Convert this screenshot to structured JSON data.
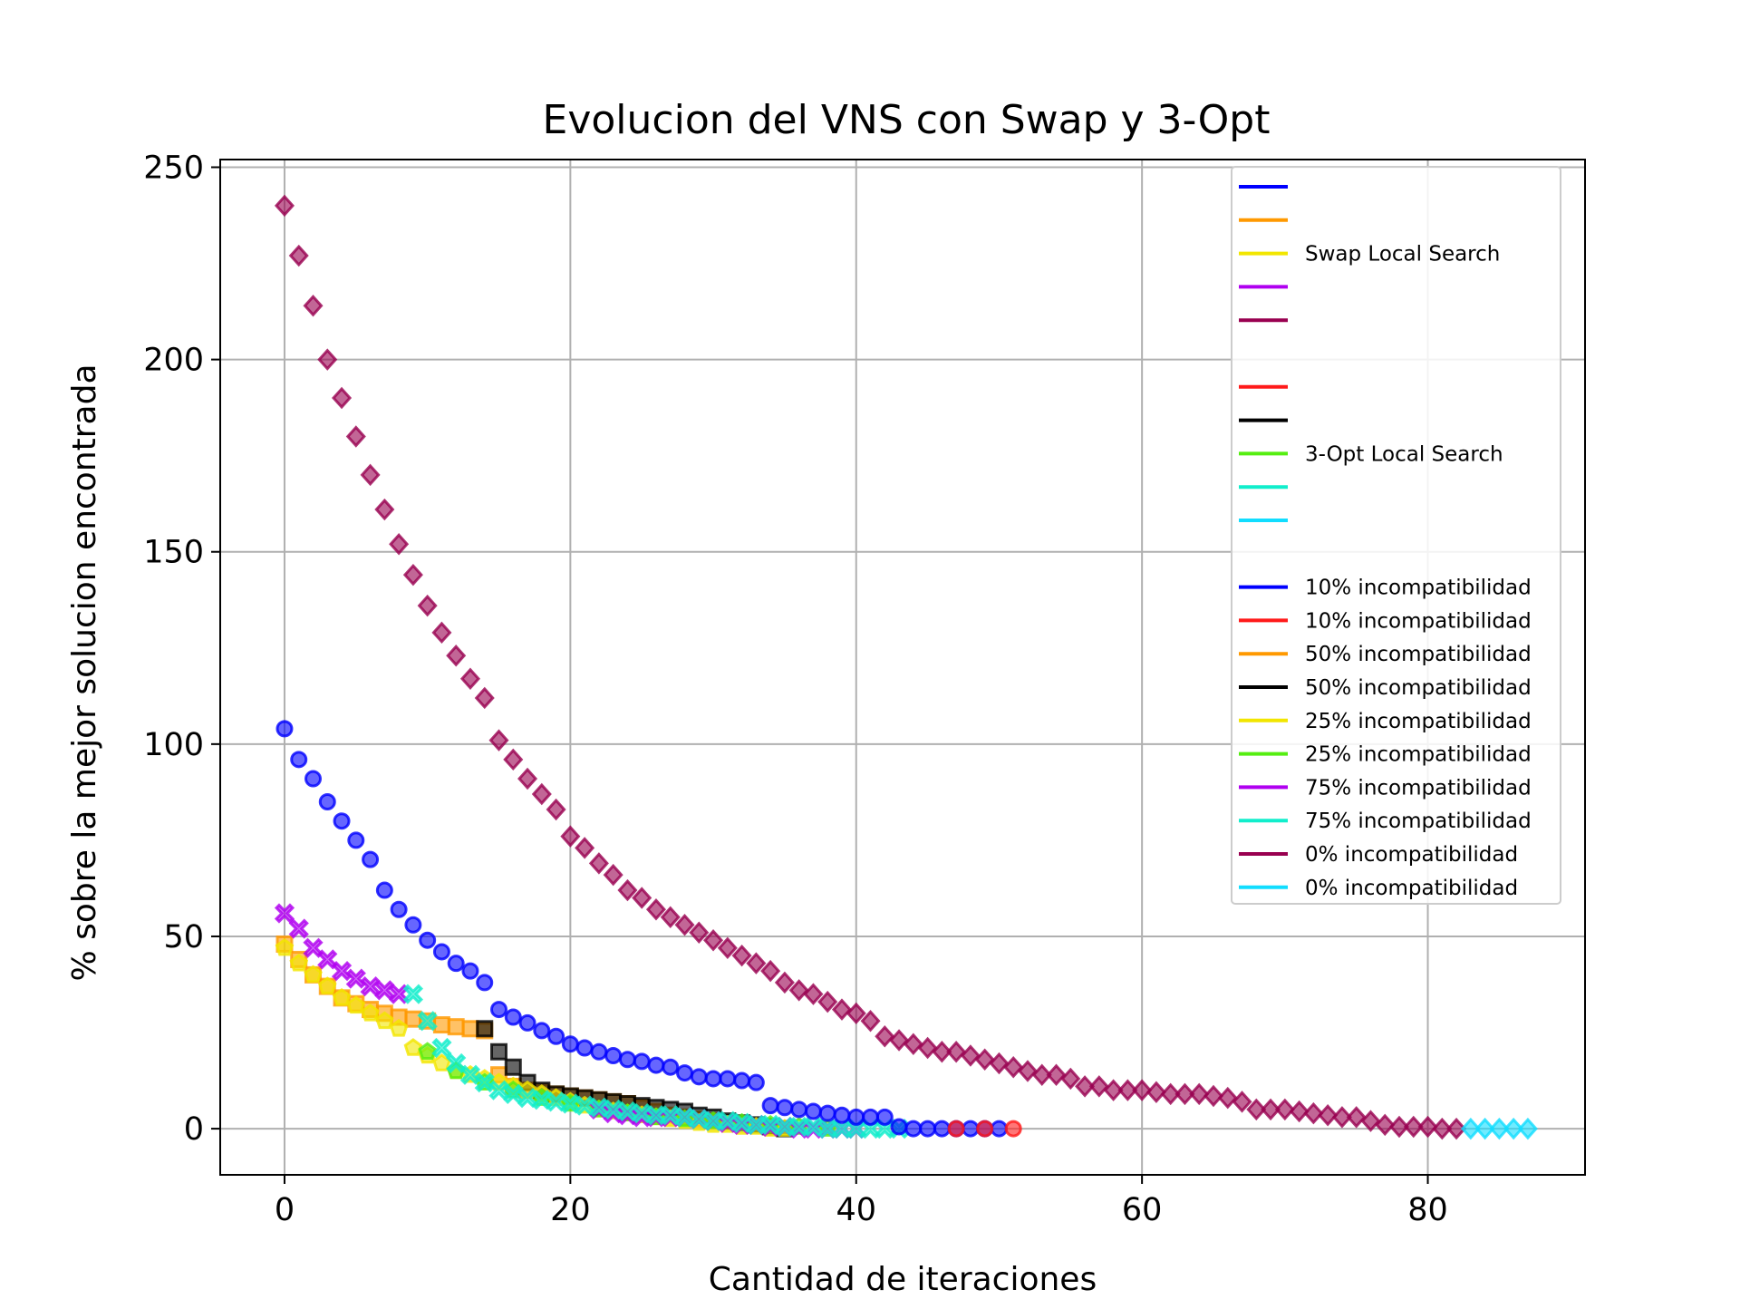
{
  "chart_data": {
    "type": "scatter",
    "title": "Evolucion del VNS con Swap y 3-Opt",
    "xlabel": "Cantidad de iteraciones",
    "ylabel": "% sobre la mejor solucion encontrada",
    "xlim": [
      -4.5,
      91
    ],
    "ylim": [
      -12,
      252
    ],
    "xticks": [
      0,
      20,
      40,
      60,
      80
    ],
    "yticks": [
      0,
      50,
      100,
      150,
      200,
      250
    ],
    "grid": true,
    "legend": {
      "placement": "top-right",
      "headers": [
        "",
        "",
        "Swap Local Search",
        "",
        "",
        "",
        "",
        "",
        "3-Opt Local Search",
        "",
        ""
      ],
      "header_colors": [
        "#0000ff",
        "#ff9900",
        "#f2e600",
        "#b000f0",
        "#990050",
        null,
        "#ff1a1a",
        "#000000",
        "#55ee11",
        "#11eecc",
        "#11ddff"
      ],
      "entries": [
        {
          "label": "10% incompatibilidad",
          "color": "#0000ff"
        },
        {
          "label": "10% incompatibilidad",
          "color": "#ff1a1a"
        },
        {
          "label": "50% incompatibilidad",
          "color": "#ff9900"
        },
        {
          "label": "50% incompatibilidad",
          "color": "#000000"
        },
        {
          "label": "25% incompatibilidad",
          "color": "#f2e600"
        },
        {
          "label": "25% incompatibilidad",
          "color": "#55ee11"
        },
        {
          "label": "75% incompatibilidad",
          "color": "#b000f0"
        },
        {
          "label": "75% incompatibilidad",
          "color": "#11eecc"
        },
        {
          "label": "0% incompatibilidad",
          "color": "#990050"
        },
        {
          "label": "0% incompatibilidad",
          "color": "#11ddff"
        }
      ]
    },
    "series": [
      {
        "marker": "square",
        "color": "#ff9900",
        "x": [
          0,
          1,
          2,
          3,
          4,
          5,
          6,
          7,
          8,
          9,
          10,
          11,
          12,
          13,
          14,
          15,
          16,
          17,
          18,
          19,
          20,
          21,
          22,
          23,
          24,
          25,
          26,
          27,
          28,
          29,
          30
        ],
        "y": [
          48,
          44,
          40,
          37,
          34,
          32.5,
          31,
          30,
          29,
          28.5,
          28,
          27,
          26.5,
          26,
          25.5,
          14,
          11,
          10,
          9.5,
          9,
          8.5,
          8,
          7.5,
          7,
          6.5,
          5.5,
          4.5,
          3.5,
          3,
          2.5,
          2
        ]
      },
      {
        "marker": "square",
        "color": "#000000",
        "x": [
          14,
          15,
          16,
          17,
          18,
          19,
          20,
          21,
          22,
          23,
          24,
          25,
          26,
          27,
          28,
          29,
          30,
          31,
          32,
          33,
          34,
          35
        ],
        "y": [
          26,
          20,
          16,
          12,
          10,
          9,
          8.5,
          8,
          7.5,
          7,
          6.5,
          6,
          5.5,
          5,
          4.5,
          3.5,
          3,
          2,
          1.5,
          1,
          0.5,
          0
        ]
      },
      {
        "marker": "pentagon",
        "color": "#f2e600",
        "x": [
          0,
          1,
          2,
          3,
          4,
          5,
          6,
          7,
          8,
          9,
          10,
          11,
          12,
          13,
          14,
          15,
          16,
          17,
          18,
          19,
          20,
          21,
          22,
          23,
          24,
          25,
          26,
          27,
          28,
          29,
          30,
          31,
          32,
          33,
          34,
          35
        ],
        "y": [
          47,
          43,
          40,
          37,
          34,
          32,
          30,
          28,
          26,
          21,
          19,
          17,
          15,
          14,
          13,
          12,
          11,
          10,
          9,
          8,
          7,
          6,
          5,
          4.5,
          4,
          3.5,
          3,
          2.5,
          2,
          1.5,
          1,
          1,
          0.5,
          0.5,
          0,
          0
        ]
      },
      {
        "marker": "pentagon",
        "color": "#55ee11",
        "x": [
          10,
          12,
          14,
          16,
          18,
          20,
          22,
          24,
          26,
          28,
          30,
          32,
          34,
          36,
          38
        ],
        "y": [
          20,
          15,
          12,
          10,
          8,
          6.5,
          5,
          4,
          3,
          2.5,
          2,
          1.5,
          1,
          0.5,
          0
        ]
      },
      {
        "marker": "x",
        "color": "#b000f0",
        "x": [
          0,
          1,
          2,
          3,
          4,
          5,
          6,
          7,
          8,
          22,
          23,
          24,
          25,
          26,
          27,
          28,
          29,
          30,
          31,
          32,
          33,
          34,
          35,
          36,
          37,
          38,
          39,
          40
        ],
        "y": [
          56,
          52,
          47,
          44,
          41,
          39,
          37,
          36,
          35,
          5,
          4,
          3.5,
          3,
          3,
          3,
          3,
          2.5,
          2,
          1.5,
          1,
          1,
          0.5,
          0.5,
          0,
          0,
          0,
          0,
          0
        ]
      },
      {
        "marker": "x",
        "color": "#11eecc",
        "x": [
          9,
          10,
          11,
          12,
          13,
          14,
          15,
          16,
          17,
          18,
          19,
          20,
          21,
          22,
          23,
          24,
          25,
          26,
          27,
          28,
          29,
          30,
          31,
          32,
          33,
          34,
          35,
          36,
          37,
          38,
          39,
          40,
          41,
          42,
          43
        ],
        "y": [
          35,
          28,
          21,
          17,
          14,
          12,
          10,
          9,
          8,
          7.5,
          7,
          6.5,
          6,
          5.5,
          5,
          4.5,
          4,
          3.5,
          3.5,
          3,
          2.5,
          2,
          2,
          1.5,
          1,
          1,
          0.5,
          0.5,
          0.5,
          0,
          0,
          0,
          0,
          0,
          0
        ]
      },
      {
        "marker": "circle",
        "color": "#0000ff",
        "x": [
          0,
          1,
          2,
          3,
          4,
          5,
          6,
          7,
          8,
          9,
          10,
          11,
          12,
          13,
          14,
          15,
          16,
          17,
          18,
          19,
          20,
          21,
          22,
          23,
          24,
          25,
          26,
          27,
          28,
          29,
          30,
          31,
          32,
          33,
          34,
          35,
          36,
          37,
          38,
          39,
          40,
          41,
          42,
          43,
          44,
          45,
          46,
          47,
          48,
          49,
          50
        ],
        "y": [
          104,
          96,
          91,
          85,
          80,
          75,
          70,
          62,
          57,
          53,
          49,
          46,
          43,
          41,
          38,
          31,
          29,
          27.5,
          25.5,
          24,
          22,
          21,
          20,
          19,
          18,
          17.5,
          16.5,
          16,
          14.5,
          13.5,
          13,
          13,
          12.5,
          12,
          6,
          5.5,
          5,
          4.5,
          4,
          3.5,
          3,
          3,
          3,
          0.5,
          0,
          0,
          0,
          0,
          0,
          0,
          0
        ]
      },
      {
        "marker": "circle",
        "color": "#ff1a1a",
        "x": [
          47,
          49,
          51
        ],
        "y": [
          0,
          0,
          0
        ]
      },
      {
        "marker": "diamond",
        "color": "#990050",
        "x": [
          0,
          1,
          2,
          3,
          4,
          5,
          6,
          7,
          8,
          9,
          10,
          11,
          12,
          13,
          14,
          15,
          16,
          17,
          18,
          19,
          20,
          21,
          22,
          23,
          24,
          25,
          26,
          27,
          28,
          29,
          30,
          31,
          32,
          33,
          34,
          35,
          36,
          37,
          38,
          39,
          40,
          41,
          42,
          43,
          44,
          45,
          46,
          47,
          48,
          49,
          50,
          51,
          52,
          53,
          54,
          55,
          56,
          57,
          58,
          59,
          60,
          61,
          62,
          63,
          64,
          65,
          66,
          67,
          68,
          69,
          70,
          71,
          72,
          73,
          74,
          75,
          76,
          77,
          78,
          79,
          80,
          81,
          82
        ],
        "y": [
          240,
          227,
          214,
          200,
          190,
          180,
          170,
          161,
          152,
          144,
          136,
          129,
          123,
          117,
          112,
          101,
          96,
          91,
          87,
          83,
          76,
          73,
          69,
          66,
          62,
          60,
          57,
          55,
          53,
          51,
          49,
          47,
          45,
          43,
          41,
          38,
          36,
          35,
          33,
          31,
          30,
          28,
          24,
          23,
          22,
          21,
          20,
          20,
          19,
          18,
          17,
          16,
          15,
          14,
          14,
          13,
          11,
          11,
          10,
          10,
          10,
          9.5,
          9,
          9,
          9,
          8.5,
          8,
          7,
          5,
          5,
          5,
          4.5,
          4,
          3.5,
          3,
          3,
          2,
          1,
          0.5,
          0.5,
          0.5,
          0,
          0
        ]
      },
      {
        "marker": "diamond",
        "color": "#11ddff",
        "x": [
          83,
          84,
          85,
          86,
          87
        ],
        "y": [
          0,
          0,
          0,
          0,
          0
        ]
      }
    ]
  }
}
